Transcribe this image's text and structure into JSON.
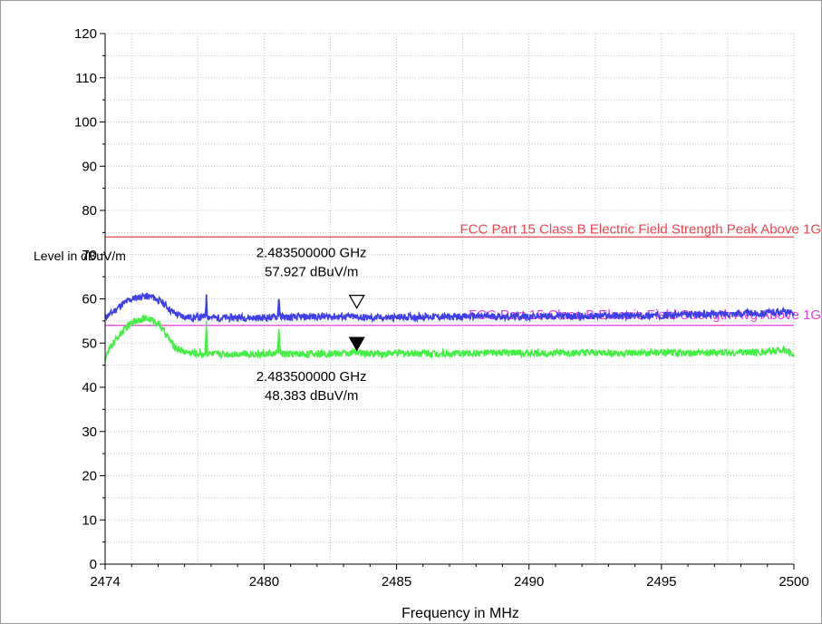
{
  "chart_data": {
    "type": "line",
    "xlabel": "Frequency in MHz",
    "ylabel": "Level in dBuV/m",
    "xlim": [
      2474,
      2500
    ],
    "ylim": [
      0,
      120
    ],
    "x_ticks": [
      {
        "value": 2474,
        "label": "2474"
      },
      {
        "value": 2480,
        "label": "2480"
      },
      {
        "value": 2485,
        "label": "2485"
      },
      {
        "value": 2490,
        "label": "2490"
      },
      {
        "value": 2495,
        "label": "2495"
      },
      {
        "value": 2500,
        "label": "2500"
      }
    ],
    "y_ticks": [
      {
        "value": 0,
        "label": "0"
      },
      {
        "value": 10,
        "label": "10"
      },
      {
        "value": 20,
        "label": "20"
      },
      {
        "value": 30,
        "label": "30"
      },
      {
        "value": 40,
        "label": "40"
      },
      {
        "value": 50,
        "label": "50"
      },
      {
        "value": 60,
        "label": "60"
      },
      {
        "value": 70,
        "label": "70"
      },
      {
        "value": 80,
        "label": "80"
      },
      {
        "value": 90,
        "label": "90"
      },
      {
        "value": 100,
        "label": "100"
      },
      {
        "value": 110,
        "label": "110"
      },
      {
        "value": 120,
        "label": "120"
      }
    ],
    "grid": true,
    "limit_lines": [
      {
        "label": "FCC Part 15 Class B Electric Field Strength Peak Above 1G",
        "value": 74,
        "color": "#e8474f"
      },
      {
        "label": "FCC Part 15 Class B Electric Field Strength Avg Above 1G",
        "value": 54,
        "color": "#e040e0"
      }
    ],
    "series": [
      {
        "color": "#3f3fe6",
        "x": [
          2474.0,
          2474.3,
          2474.6,
          2475.0,
          2475.4,
          2475.8,
          2476.2,
          2476.5,
          2476.8,
          2477.2,
          2477.6,
          2477.78,
          2477.82,
          2477.86,
          2478.2,
          2479.0,
          2479.8,
          2480.5,
          2480.56,
          2480.62,
          2481.0,
          2482.0,
          2483.0,
          2483.5,
          2484.0,
          2485.0,
          2486.0,
          2487.0,
          2488.0,
          2489.0,
          2490.0,
          2491.0,
          2492.0,
          2493.0,
          2494.0,
          2495.0,
          2496.0,
          2497.0,
          2498.0,
          2499.0,
          2499.5,
          2500.0
        ],
        "y": [
          55.8,
          57.0,
          58.6,
          60.0,
          60.6,
          60.4,
          59.0,
          57.2,
          56.2,
          55.8,
          55.8,
          56.0,
          61.0,
          56.0,
          55.7,
          55.8,
          55.7,
          55.9,
          60.0,
          55.9,
          55.8,
          56.0,
          56.0,
          55.9,
          55.7,
          55.8,
          56.0,
          55.9,
          56.1,
          56.0,
          56.0,
          56.1,
          56.0,
          56.2,
          56.1,
          56.3,
          56.4,
          56.6,
          56.7,
          56.8,
          57.2,
          56.5
        ]
      },
      {
        "color": "#44ee44",
        "x": [
          2474.0,
          2474.2,
          2474.5,
          2474.8,
          2475.1,
          2475.4,
          2475.7,
          2476.0,
          2476.3,
          2476.6,
          2476.9,
          2477.2,
          2477.5,
          2477.78,
          2477.82,
          2477.86,
          2478.2,
          2479.0,
          2479.8,
          2480.5,
          2480.56,
          2480.62,
          2481.0,
          2482.0,
          2483.0,
          2483.5,
          2484.0,
          2485.0,
          2486.0,
          2487.0,
          2488.0,
          2489.0,
          2490.0,
          2491.0,
          2492.0,
          2493.0,
          2494.0,
          2495.0,
          2496.0,
          2497.0,
          2498.0,
          2499.0,
          2499.5,
          2500.0
        ],
        "y": [
          46.5,
          49.0,
          51.5,
          53.5,
          55.0,
          55.6,
          55.4,
          54.5,
          52.0,
          49.2,
          48.2,
          47.8,
          47.6,
          47.6,
          55.0,
          47.6,
          47.5,
          47.6,
          47.5,
          47.6,
          53.0,
          47.6,
          47.5,
          47.6,
          47.7,
          47.8,
          47.6,
          47.7,
          47.8,
          47.6,
          47.7,
          47.8,
          47.7,
          47.8,
          47.7,
          47.8,
          47.6,
          47.8,
          47.7,
          47.8,
          47.9,
          48.0,
          48.6,
          47.6
        ]
      }
    ],
    "markers": [
      {
        "x": 2483.5,
        "y": 57.927,
        "style": "open",
        "freq_label": "2.483500000 GHz",
        "level_label": "57.927 dBuV/m"
      },
      {
        "x": 2483.5,
        "y": 48.383,
        "style": "filled",
        "freq_label": "2.483500000 GHz",
        "level_label": "48.383 dBuV/m"
      }
    ]
  }
}
